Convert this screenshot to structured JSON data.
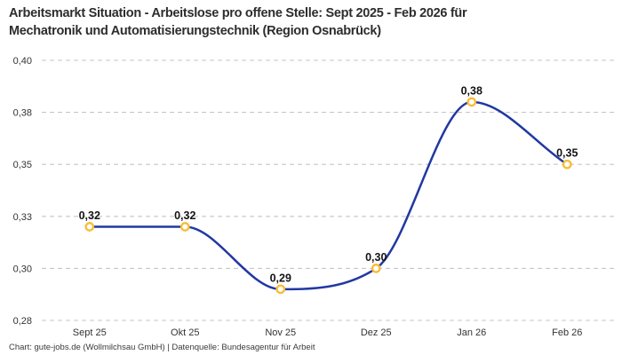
{
  "header": {
    "title_line1": "Arbeitsmarkt Situation - Arbeitslose pro offene Stelle: Sept 2025 - Feb 2026 für",
    "title_line2": "Mechatronik und Automatisierungstechnik (Region Osnabrück)"
  },
  "footer": {
    "credit": "Chart: gute-jobs.de (Wollmilchsau GmbH) | Datenquelle: Bundesagentur für Arbeit"
  },
  "chart_data": {
    "type": "line",
    "title": "Arbeitsmarkt Situation - Arbeitslose pro offene Stelle: Sept 2025 - Feb 2026 für Mechatronik und Automatisierungstechnik (Region Osnabrück)",
    "categories": [
      "Sept 25",
      "Okt 25",
      "Nov 25",
      "Dez 25",
      "Jan 26",
      "Feb 26"
    ],
    "values": [
      0.32,
      0.32,
      0.29,
      0.3,
      0.38,
      0.35
    ],
    "point_labels": [
      "0,32",
      "0,32",
      "0,29",
      "0,30",
      "0,38",
      "0,35"
    ],
    "xlabel": "",
    "ylabel": "",
    "ylim": [
      0.275,
      0.4
    ],
    "yticks": [
      {
        "value": 0.4,
        "label": "0,40"
      },
      {
        "value": 0.375,
        "label": "0,38"
      },
      {
        "value": 0.35,
        "label": "0,35"
      },
      {
        "value": 0.325,
        "label": "0,33"
      },
      {
        "value": 0.3,
        "label": "0,30"
      },
      {
        "value": 0.275,
        "label": "0,28"
      }
    ],
    "grid": {
      "horizontal": true,
      "style": "dashed"
    },
    "legend": "none",
    "line_style": "smooth-monotone",
    "colors": {
      "line": "#2138A3",
      "marker_ring": "#F8BC33",
      "marker_fill": "#ffffff",
      "grid": "#c6c6c6",
      "axis_text": "#333333",
      "label_text": "#141414",
      "background": "#ffffff"
    }
  }
}
